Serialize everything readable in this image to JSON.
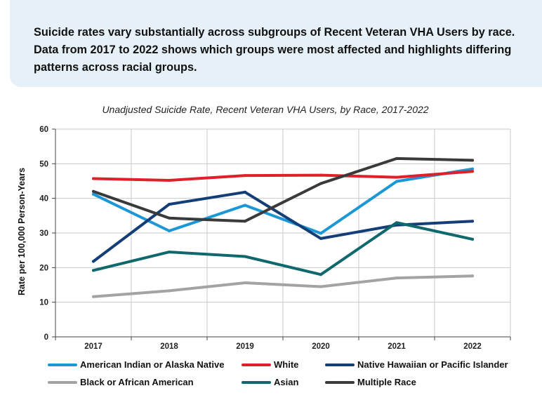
{
  "intro": {
    "text": "Suicide rates vary substantially across subgroups of Recent Veteran VHA Users by race. Data from 2017 to 2022 shows which groups were most affected and highlights differing patterns across racial groups."
  },
  "chart_data": {
    "type": "line",
    "title": "Unadjusted Suicide Rate, Recent Veteran VHA Users, by Race, 2017-2022",
    "xlabel": "",
    "ylabel": "Rate per 100,000 Person-Years",
    "categories": [
      "2017",
      "2018",
      "2019",
      "2020",
      "2021",
      "2022"
    ],
    "ylim": [
      0,
      60
    ],
    "yticks": [
      0,
      10,
      20,
      30,
      40,
      50,
      60
    ],
    "grid": true,
    "legend_position": "bottom",
    "series": [
      {
        "name": "American Indian or Alaska Native",
        "color": "#1b97d6",
        "values": [
          41.2,
          30.6,
          38.0,
          29.9,
          44.9,
          48.5
        ]
      },
      {
        "name": "White",
        "color": "#e02028",
        "values": [
          45.7,
          45.2,
          46.6,
          46.7,
          46.1,
          47.8
        ]
      },
      {
        "name": "Native Hawaiian or Pacific Islander",
        "color": "#143e78",
        "values": [
          21.8,
          38.3,
          41.8,
          28.4,
          32.3,
          33.4
        ]
      },
      {
        "name": "Black or African American",
        "color": "#a3a3a5",
        "values": [
          11.6,
          13.3,
          15.6,
          14.5,
          17.0,
          17.6
        ]
      },
      {
        "name": "Asian",
        "color": "#0f686c",
        "values": [
          19.2,
          24.5,
          23.2,
          18.0,
          33.0,
          28.2
        ]
      },
      {
        "name": "Multiple Race",
        "color": "#3a3a3c",
        "values": [
          42.0,
          34.3,
          33.4,
          44.3,
          51.5,
          51.0
        ]
      }
    ]
  }
}
